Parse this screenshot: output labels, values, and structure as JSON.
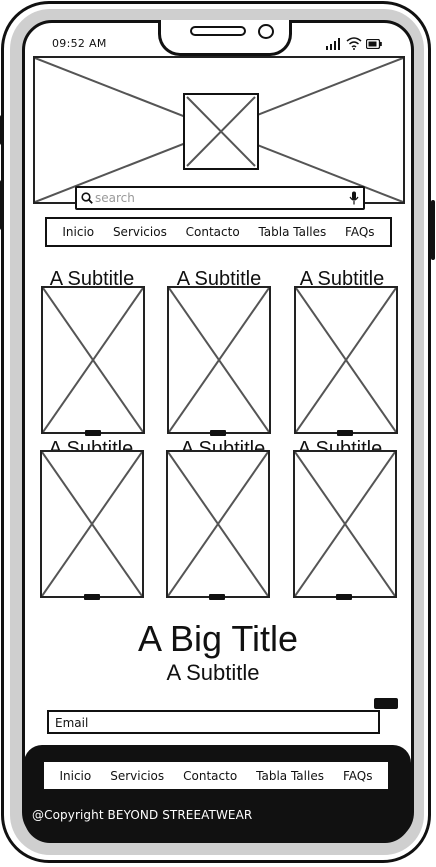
{
  "status_bar": {
    "time": "09:52 AM"
  },
  "search": {
    "placeholder": "search"
  },
  "nav": {
    "items": [
      "Inicio",
      "Servicios",
      "Contacto",
      "Tabla Talles",
      "FAQs"
    ]
  },
  "products": [
    {
      "subtitle": "A Subtitle"
    },
    {
      "subtitle": "A Subtitle"
    },
    {
      "subtitle": "A Subtitle"
    },
    {
      "subtitle": "A Subtitle"
    },
    {
      "subtitle": "A Subtitle"
    },
    {
      "subtitle": "A Subtitle"
    }
  ],
  "hero": {
    "title": "A Big Title",
    "subtitle": "A Subtitle"
  },
  "email": {
    "placeholder": "Email"
  },
  "footer": {
    "nav": [
      "Inicio",
      "Servicios",
      "Contacto",
      "Tabla Talles",
      "FAQs"
    ],
    "copyright": "@Copyright BEYOND STREEATWEAR"
  },
  "icons": {
    "search": "search-icon",
    "mic": "microphone-icon",
    "signal": "signal-icon",
    "wifi": "wifi-icon",
    "battery": "battery-icon"
  },
  "colors": {
    "ink": "#111111",
    "bezel": "#cfcfcf",
    "placeholder_line": "#555555"
  }
}
